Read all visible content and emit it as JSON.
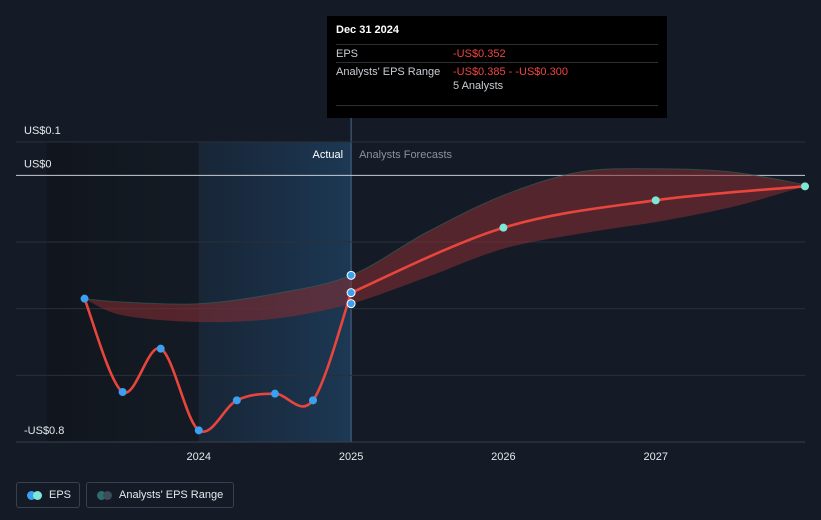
{
  "tooltip": {
    "date": "Dec 31 2024",
    "eps_label": "EPS",
    "eps_value": "-US$0.352",
    "range_label": "Analysts' EPS Range",
    "range_value": "-US$0.385 - -US$0.300",
    "analysts": "5 Analysts"
  },
  "legend": {
    "eps_label": "EPS",
    "range_label": "Analysts' EPS Range"
  },
  "colors": {
    "background": "#151b26",
    "eps_line": "#e8453c",
    "eps_point": "#3ba0f0",
    "forecast_point": "#7de8d8",
    "range_fill": "#8b2e33",
    "range_fill_upper": "#2c6b5c",
    "negative_value": "#ef4444",
    "actual_region": "#1d3a57"
  },
  "chart_data": {
    "type": "line",
    "region_labels": {
      "actual": "Actual",
      "forecast": "Analysts Forecasts"
    },
    "y_tick_labels": [
      {
        "value": 0.1,
        "label": "US$0.1"
      },
      {
        "value": 0.0,
        "label": "US$0"
      },
      {
        "value": -0.8,
        "label": "-US$0.8"
      }
    ],
    "x_tick_labels": [
      {
        "value": 2024.0,
        "label": "2024"
      },
      {
        "value": 2025.0,
        "label": "2025"
      },
      {
        "value": 2026.0,
        "label": "2026"
      },
      {
        "value": 2027.0,
        "label": "2027"
      }
    ],
    "xlim": [
      2022.8,
      2027.98
    ],
    "ylim": [
      -0.8,
      0.1
    ],
    "gridlines": [
      0.1,
      0.0,
      -0.2,
      -0.4,
      -0.6,
      -0.8
    ],
    "actual_region": [
      2024.0,
      2025.0
    ],
    "shade_start": 2023.0,
    "series": [
      {
        "name": "EPS",
        "kind": "actual",
        "x": [
          2023.25,
          2023.5,
          2023.75,
          2024.0,
          2024.25,
          2024.5,
          2024.75,
          2025.0
        ],
        "y": [
          -0.37,
          -0.65,
          -0.52,
          -0.765,
          -0.675,
          -0.655,
          -0.675,
          -0.352
        ]
      },
      {
        "name": "EPS",
        "kind": "forecast",
        "x": [
          2025.0,
          2026.0,
          2027.0,
          2027.98
        ],
        "y": [
          -0.352,
          -0.157,
          -0.075,
          -0.033
        ]
      }
    ],
    "range": {
      "x": [
        2023.25,
        2023.5,
        2024.0,
        2024.5,
        2025.0,
        2025.5,
        2026.0,
        2026.5,
        2027.0,
        2027.5,
        2027.98
      ],
      "low": [
        -0.37,
        -0.42,
        -0.44,
        -0.43,
        -0.385,
        -0.305,
        -0.22,
        -0.175,
        -0.14,
        -0.095,
        -0.033
      ],
      "high": [
        -0.37,
        -0.38,
        -0.385,
        -0.355,
        -0.3,
        -0.17,
        -0.06,
        0.01,
        0.02,
        0.01,
        -0.028
      ]
    },
    "forecast_markers": [
      2026.0,
      2027.0,
      2027.98
    ],
    "highlight_points": [
      {
        "x": 2025.0,
        "y": -0.3
      },
      {
        "x": 2025.0,
        "y": -0.352
      },
      {
        "x": 2025.0,
        "y": -0.385
      }
    ]
  }
}
